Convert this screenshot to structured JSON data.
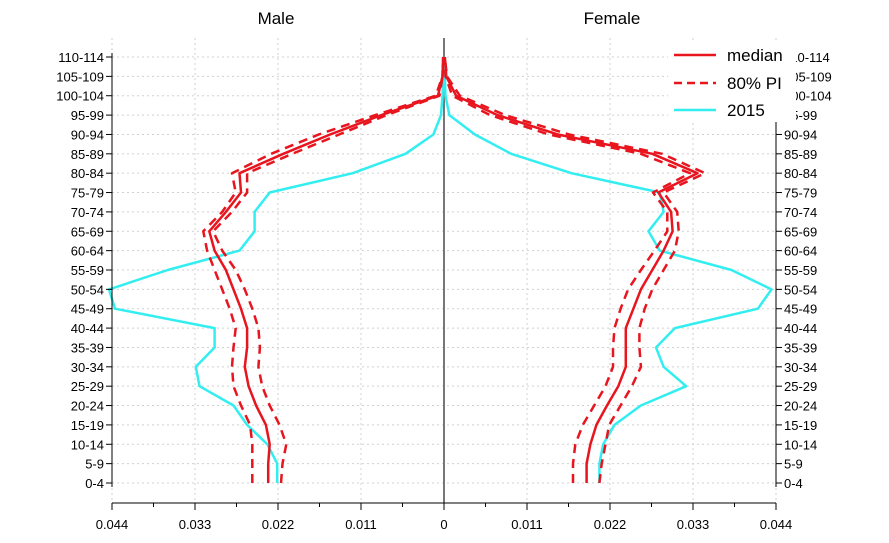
{
  "chart_data": {
    "type": "line",
    "panels": [
      "Male",
      "Female"
    ],
    "age_groups": [
      "0-4",
      "5-9",
      "10-14",
      "15-19",
      "20-24",
      "25-29",
      "30-34",
      "35-39",
      "40-44",
      "45-49",
      "50-54",
      "55-59",
      "60-64",
      "65-69",
      "70-74",
      "75-79",
      "80-84",
      "85-89",
      "90-94",
      "95-99",
      "100-104",
      "105-109",
      "110-114"
    ],
    "x_ticks": [
      {
        "value": -0.044,
        "label": "0.044"
      },
      {
        "value": -0.033,
        "label": "0.033"
      },
      {
        "value": -0.022,
        "label": "0.022"
      },
      {
        "value": -0.011,
        "label": "0.011"
      },
      {
        "value": 0,
        "label": "0"
      },
      {
        "value": 0.011,
        "label": "0.011"
      },
      {
        "value": 0.022,
        "label": "0.022"
      },
      {
        "value": 0.033,
        "label": "0.033"
      },
      {
        "value": 0.044,
        "label": "0.044"
      }
    ],
    "xlim": [
      -0.044,
      0.044
    ],
    "grid": true,
    "legend_position": "top-right",
    "series": [
      {
        "name": "median",
        "color": "#e8141e",
        "style": "solid",
        "male": [
          0.0233,
          0.0233,
          0.0231,
          0.0236,
          0.0249,
          0.0259,
          0.0264,
          0.0261,
          0.0261,
          0.0269,
          0.0279,
          0.0289,
          0.0304,
          0.0311,
          0.0289,
          0.0269,
          0.0271,
          0.0213,
          0.0151,
          0.0083,
          0.0008,
          0.0002,
          0.0001
        ],
        "female": [
          0.0189,
          0.0189,
          0.0194,
          0.0202,
          0.0216,
          0.0231,
          0.0241,
          0.0241,
          0.0241,
          0.0251,
          0.0261,
          0.0276,
          0.0291,
          0.0303,
          0.0301,
          0.0284,
          0.0336,
          0.0276,
          0.0151,
          0.0071,
          0.0016,
          0.0003,
          0.0001
        ]
      },
      {
        "name": "80% PI",
        "color": "#e8141e",
        "style": "dashed",
        "male_low": [
          0.0216,
          0.0214,
          0.0209,
          0.0218,
          0.0231,
          0.0241,
          0.0246,
          0.0244,
          0.0246,
          0.0254,
          0.0264,
          0.0276,
          0.0294,
          0.0306,
          0.0281,
          0.0261,
          0.0261,
          0.0201,
          0.0139,
          0.0076,
          0.0006,
          0.0002,
          0.0001
        ],
        "male_high": [
          0.0254,
          0.0254,
          0.0254,
          0.0257,
          0.0269,
          0.0279,
          0.0281,
          0.0279,
          0.0276,
          0.0284,
          0.0294,
          0.0304,
          0.0314,
          0.0319,
          0.0294,
          0.0276,
          0.0281,
          0.0229,
          0.0166,
          0.0091,
          0.0011,
          0.0002,
          0.0001
        ],
        "female_low": [
          0.0171,
          0.0171,
          0.0174,
          0.0184,
          0.0199,
          0.0214,
          0.0224,
          0.0224,
          0.0226,
          0.0234,
          0.0244,
          0.0261,
          0.0279,
          0.0296,
          0.0296,
          0.0277,
          0.0326,
          0.0261,
          0.0139,
          0.0061,
          0.0011,
          0.0002,
          0.0001
        ],
        "female_high": [
          0.0206,
          0.0209,
          0.0214,
          0.0219,
          0.0234,
          0.0249,
          0.0261,
          0.0259,
          0.0259,
          0.0266,
          0.0276,
          0.0291,
          0.0306,
          0.0311,
          0.0309,
          0.0291,
          0.0346,
          0.0289,
          0.0166,
          0.0081,
          0.0021,
          0.0004,
          0.0001
        ]
      },
      {
        "name": "2015",
        "color": "#33eef0",
        "style": "solid",
        "male": [
          0.0221,
          0.0221,
          0.0234,
          0.0261,
          0.0279,
          0.0324,
          0.0329,
          0.0304,
          0.0304,
          0.0436,
          0.0444,
          0.0366,
          0.0271,
          0.0251,
          0.0251,
          0.0231,
          0.0121,
          0.0051,
          0.0014,
          0.0004,
          0.0002,
          0.0001,
          0.0001
        ],
        "female": [
          0.0206,
          0.0206,
          0.0211,
          0.0226,
          0.0261,
          0.0321,
          0.0291,
          0.0281,
          0.0306,
          0.0416,
          0.0434,
          0.0381,
          0.0286,
          0.0271,
          0.0291,
          0.0286,
          0.0169,
          0.0089,
          0.0041,
          0.0007,
          0.0002,
          0.0001,
          0.0001
        ]
      }
    ]
  }
}
